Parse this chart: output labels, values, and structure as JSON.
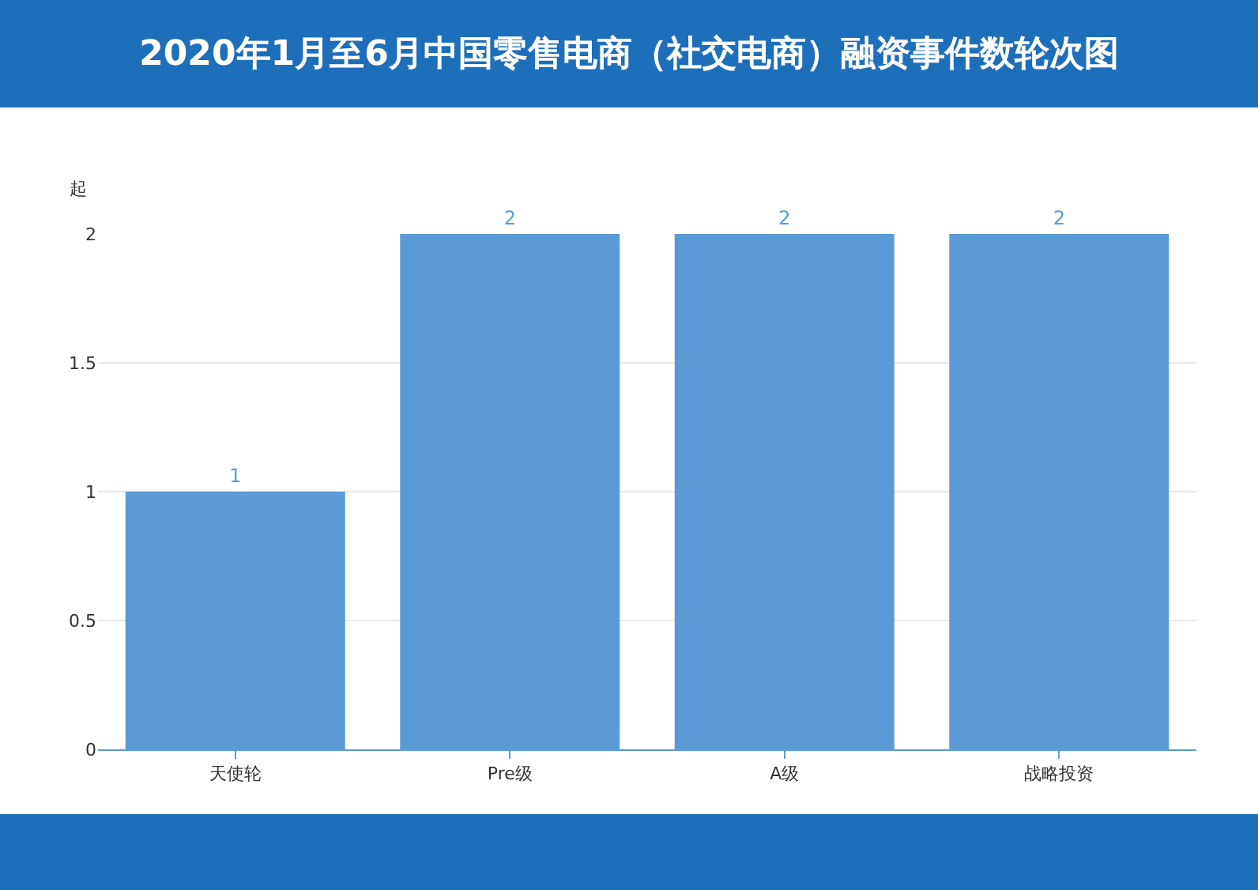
{
  "chart_data": {
    "type": "bar",
    "title": "2020年1月至6月中国零售电商（社交电商）融资事件数轮次图",
    "ylabel": "起",
    "categories": [
      "天使轮",
      "Pre级",
      "A级",
      "战略投资"
    ],
    "values": [
      1,
      2,
      2,
      2
    ],
    "color": "#5b9bd5",
    "ylim": [
      0,
      2
    ],
    "yticks": [
      0,
      0.5,
      1,
      1.5,
      2
    ],
    "grid": "y",
    "data_labels": true
  }
}
